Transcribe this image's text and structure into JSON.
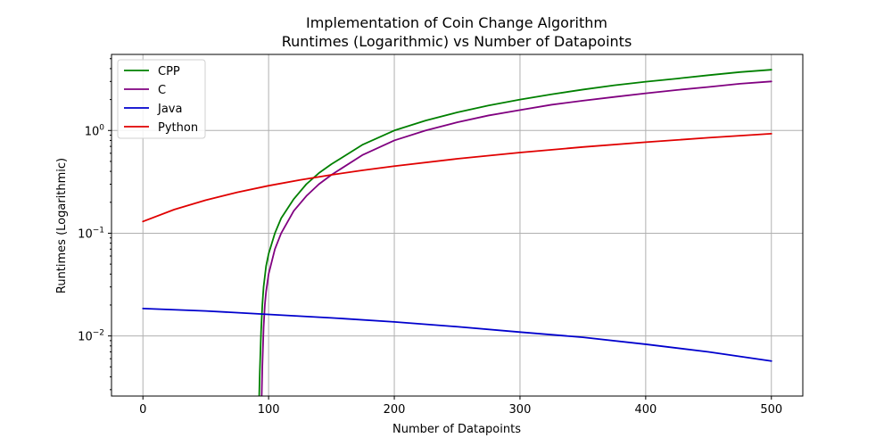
{
  "chart_data": {
    "type": "line",
    "title_line1": "Implementation of Coin Change Algorithm",
    "title_line2": "Runtimes (Logarithmic) vs Number of Datapoints",
    "xlabel": "Number of Datapoints",
    "ylabel": "Runtimes (Logarithmic)",
    "xlim": [
      -25,
      525
    ],
    "ylim": [
      0.0026,
      5.5
    ],
    "yscale": "log",
    "grid": true,
    "legend_position": "top-left",
    "xticks": [
      {
        "value": 0,
        "label": "0"
      },
      {
        "value": 100,
        "label": "100"
      },
      {
        "value": 200,
        "label": "200"
      },
      {
        "value": 300,
        "label": "300"
      },
      {
        "value": 400,
        "label": "400"
      },
      {
        "value": 500,
        "label": "500"
      }
    ],
    "yticks": [
      {
        "value": 0.01,
        "base": "10",
        "exp": "−2"
      },
      {
        "value": 0.1,
        "base": "10",
        "exp": "−1"
      },
      {
        "value": 1,
        "base": "10",
        "exp": "0"
      }
    ],
    "series": [
      {
        "name": "CPP",
        "color": "#008000",
        "x": [
          92.5,
          93,
          94,
          95,
          96,
          98,
          100,
          105,
          110,
          120,
          130,
          140,
          150,
          175,
          200,
          225,
          250,
          275,
          300,
          325,
          350,
          375,
          400,
          425,
          450,
          475,
          500
        ],
        "y": [
          0.0026,
          0.0045,
          0.011,
          0.02,
          0.03,
          0.048,
          0.063,
          0.1,
          0.14,
          0.215,
          0.3,
          0.385,
          0.47,
          0.73,
          1.0,
          1.25,
          1.5,
          1.75,
          2.0,
          2.25,
          2.5,
          2.75,
          2.98,
          3.2,
          3.45,
          3.7,
          3.9
        ]
      },
      {
        "name": "C",
        "color": "#800080",
        "x": [
          94.5,
          95,
          96,
          97,
          98,
          100,
          105,
          110,
          120,
          130,
          140,
          150,
          175,
          200,
          225,
          250,
          275,
          300,
          325,
          350,
          375,
          400,
          425,
          450,
          475,
          500
        ],
        "y": [
          0.0026,
          0.005,
          0.012,
          0.02,
          0.027,
          0.04,
          0.07,
          0.1,
          0.165,
          0.23,
          0.3,
          0.37,
          0.58,
          0.8,
          1.0,
          1.2,
          1.4,
          1.58,
          1.78,
          1.95,
          2.12,
          2.3,
          2.48,
          2.65,
          2.85,
          3.0
        ]
      },
      {
        "name": "Java",
        "color": "#0000cd",
        "x": [
          0,
          50,
          100,
          150,
          200,
          250,
          300,
          350,
          400,
          450,
          500
        ],
        "y": [
          0.0185,
          0.0175,
          0.0162,
          0.015,
          0.0137,
          0.0123,
          0.0109,
          0.0097,
          0.0083,
          0.007,
          0.0057
        ]
      },
      {
        "name": "Python",
        "color": "#e00000",
        "x": [
          0,
          25,
          50,
          75,
          100,
          125,
          150,
          175,
          200,
          250,
          300,
          350,
          400,
          450,
          500
        ],
        "y": [
          0.13,
          0.17,
          0.21,
          0.25,
          0.29,
          0.33,
          0.37,
          0.41,
          0.45,
          0.53,
          0.61,
          0.69,
          0.77,
          0.85,
          0.93
        ]
      }
    ]
  }
}
